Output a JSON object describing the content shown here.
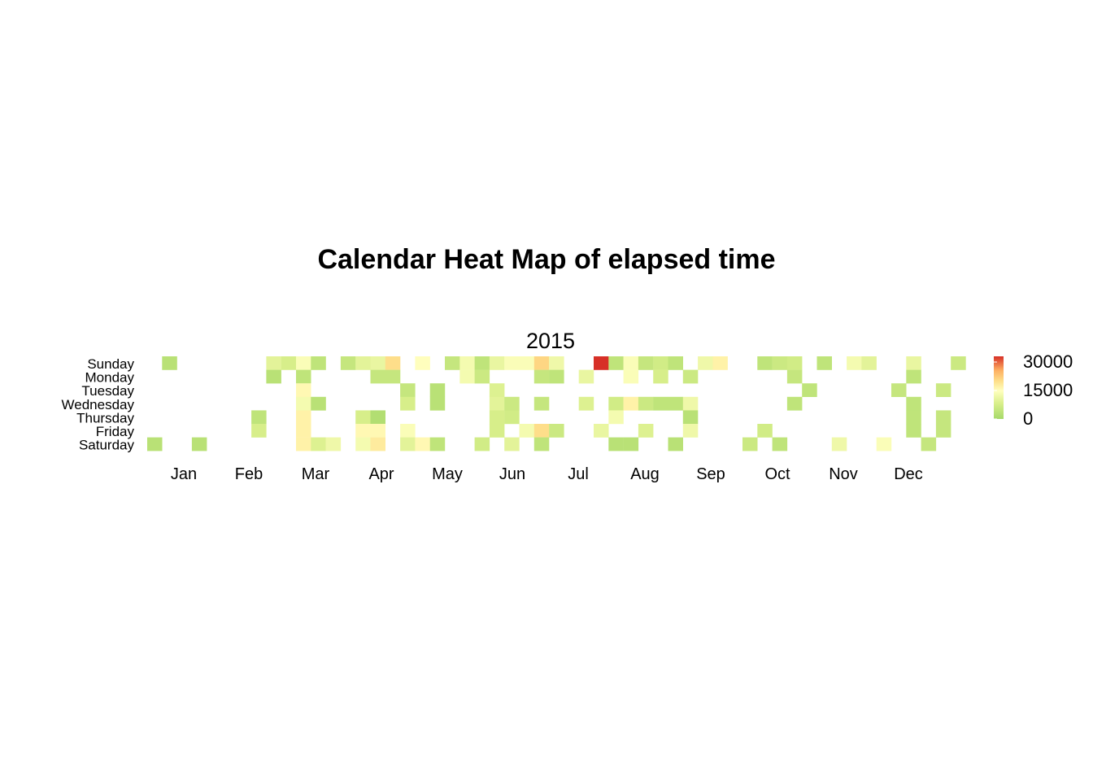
{
  "chart_data": {
    "type": "heatmap",
    "title": "Calendar Heat Map of elapsed time",
    "year": "2015",
    "day_labels": [
      "Sunday",
      "Monday",
      "Tuesday",
      "Wednesday",
      "Thursday",
      "Friday",
      "Saturday"
    ],
    "month_labels": [
      "Jan",
      "Feb",
      "Mar",
      "Apr",
      "May",
      "Jun",
      "Jul",
      "Aug",
      "Sep",
      "Oct",
      "Nov",
      "Dec"
    ],
    "legend": {
      "ticks": [
        "30000",
        "15000",
        "0"
      ],
      "tick_values": [
        30000,
        15000,
        0
      ],
      "range": [
        0,
        33000
      ],
      "colors": [
        "#a6d96a",
        "#d9ef8b",
        "#ffffbf",
        "#fee08b",
        "#fdae61",
        "#d73027"
      ]
    },
    "cells": [
      [
        1,
        0,
        3000
      ],
      [
        0,
        6,
        3000
      ],
      [
        3,
        6,
        3000
      ],
      [
        7,
        4,
        4000
      ],
      [
        7,
        5,
        8000
      ],
      [
        8,
        0,
        10000
      ],
      [
        8,
        1,
        3000
      ],
      [
        9,
        0,
        8000
      ],
      [
        10,
        0,
        14000
      ],
      [
        10,
        1,
        4000
      ],
      [
        10,
        2,
        16000
      ],
      [
        10,
        3,
        13000
      ],
      [
        10,
        4,
        17000
      ],
      [
        10,
        5,
        17000
      ],
      [
        10,
        6,
        17000
      ],
      [
        11,
        0,
        4000
      ],
      [
        11,
        3,
        3000
      ],
      [
        11,
        6,
        9000
      ],
      [
        12,
        6,
        12000
      ],
      [
        13,
        0,
        5000
      ],
      [
        14,
        0,
        10000
      ],
      [
        14,
        4,
        8000
      ],
      [
        14,
        5,
        16000
      ],
      [
        14,
        6,
        13000
      ],
      [
        15,
        0,
        11000
      ],
      [
        15,
        1,
        5000
      ],
      [
        15,
        4,
        2000
      ],
      [
        15,
        5,
        16000
      ],
      [
        15,
        6,
        18000
      ],
      [
        16,
        0,
        20000
      ],
      [
        16,
        1,
        5000
      ],
      [
        17,
        2,
        5000
      ],
      [
        17,
        3,
        8000
      ],
      [
        17,
        5,
        14000
      ],
      [
        17,
        6,
        10000
      ],
      [
        18,
        0,
        15000
      ],
      [
        18,
        6,
        16000
      ],
      [
        19,
        2,
        3000
      ],
      [
        19,
        3,
        3000
      ],
      [
        19,
        6,
        4000
      ],
      [
        20,
        0,
        5000
      ],
      [
        21,
        0,
        13000
      ],
      [
        21,
        1,
        13000
      ],
      [
        22,
        0,
        4000
      ],
      [
        22,
        1,
        6000
      ],
      [
        22,
        6,
        7000
      ],
      [
        23,
        0,
        11000
      ],
      [
        23,
        2,
        9000
      ],
      [
        23,
        3,
        10000
      ],
      [
        23,
        4,
        8000
      ],
      [
        23,
        5,
        8000
      ],
      [
        24,
        0,
        14000
      ],
      [
        24,
        3,
        6000
      ],
      [
        24,
        4,
        7000
      ],
      [
        24,
        6,
        10000
      ],
      [
        25,
        0,
        14000
      ],
      [
        25,
        5,
        13000
      ],
      [
        26,
        0,
        21000
      ],
      [
        26,
        1,
        5000
      ],
      [
        26,
        3,
        5000
      ],
      [
        26,
        5,
        20000
      ],
      [
        26,
        6,
        4000
      ],
      [
        27,
        0,
        12000
      ],
      [
        27,
        1,
        4000
      ],
      [
        27,
        5,
        6000
      ],
      [
        29,
        1,
        11000
      ],
      [
        29,
        3,
        9000
      ],
      [
        30,
        0,
        33000
      ],
      [
        30,
        5,
        11000
      ],
      [
        31,
        0,
        4000
      ],
      [
        31,
        3,
        7000
      ],
      [
        31,
        4,
        13000
      ],
      [
        31,
        6,
        3000
      ],
      [
        32,
        0,
        14000
      ],
      [
        32,
        1,
        14000
      ],
      [
        32,
        3,
        17000
      ],
      [
        32,
        6,
        3000
      ],
      [
        33,
        0,
        5000
      ],
      [
        33,
        3,
        6000
      ],
      [
        33,
        5,
        9000
      ],
      [
        34,
        0,
        7000
      ],
      [
        34,
        1,
        8000
      ],
      [
        34,
        3,
        4000
      ],
      [
        35,
        0,
        4000
      ],
      [
        35,
        3,
        4000
      ],
      [
        35,
        6,
        3000
      ],
      [
        36,
        1,
        6000
      ],
      [
        36,
        3,
        12000
      ],
      [
        36,
        4,
        3000
      ],
      [
        36,
        5,
        12000
      ],
      [
        37,
        0,
        12000
      ],
      [
        38,
        0,
        17000
      ],
      [
        40,
        6,
        6000
      ],
      [
        41,
        0,
        4000
      ],
      [
        41,
        5,
        7000
      ],
      [
        42,
        0,
        6000
      ],
      [
        42,
        6,
        4000
      ],
      [
        43,
        0,
        7000
      ],
      [
        43,
        1,
        5000
      ],
      [
        43,
        3,
        4000
      ],
      [
        44,
        2,
        4000
      ],
      [
        45,
        0,
        4000
      ],
      [
        46,
        6,
        12000
      ],
      [
        47,
        0,
        13000
      ],
      [
        48,
        0,
        10000
      ],
      [
        49,
        6,
        14000
      ],
      [
        50,
        2,
        5000
      ],
      [
        51,
        0,
        11000
      ],
      [
        51,
        1,
        4000
      ],
      [
        51,
        3,
        4000
      ],
      [
        51,
        4,
        4000
      ],
      [
        51,
        5,
        4000
      ],
      [
        52,
        6,
        5000
      ],
      [
        53,
        2,
        6000
      ],
      [
        53,
        4,
        5000
      ],
      [
        53,
        5,
        5000
      ],
      [
        54,
        0,
        6000
      ]
    ]
  }
}
